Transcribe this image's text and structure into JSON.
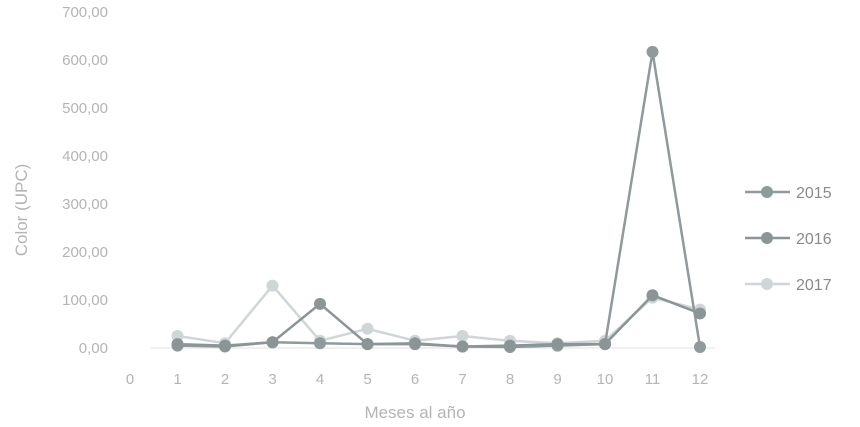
{
  "chart_data": {
    "type": "line",
    "title": "",
    "xlabel": "Meses al año",
    "ylabel": "Color (UPC)",
    "x_ticks": [
      "0",
      "1",
      "2",
      "3",
      "4",
      "5",
      "6",
      "7",
      "8",
      "9",
      "10",
      "11",
      "12"
    ],
    "y_ticks": [
      "0,00",
      "100,00",
      "200,00",
      "300,00",
      "400,00",
      "500,00",
      "600,00",
      "700,00"
    ],
    "xlim": [
      0,
      12
    ],
    "ylim": [
      0,
      700
    ],
    "grid": false,
    "legend_position": "right",
    "x": [
      1,
      2,
      3,
      4,
      5,
      6,
      7,
      8,
      9,
      10,
      11,
      12
    ],
    "series": [
      {
        "name": "2015",
        "color": "#8e9a9c",
        "values": [
          5,
          3,
          12,
          10,
          8,
          10,
          3,
          2,
          5,
          8,
          617,
          2
        ]
      },
      {
        "name": "2016",
        "color": "#8c9596",
        "values": [
          8,
          5,
          12,
          92,
          8,
          8,
          3,
          5,
          8,
          8,
          110,
          72
        ]
      },
      {
        "name": "2017",
        "color": "#cfd6d8",
        "values": [
          25,
          10,
          130,
          15,
          40,
          15,
          25,
          15,
          10,
          15,
          105,
          80
        ]
      }
    ]
  }
}
